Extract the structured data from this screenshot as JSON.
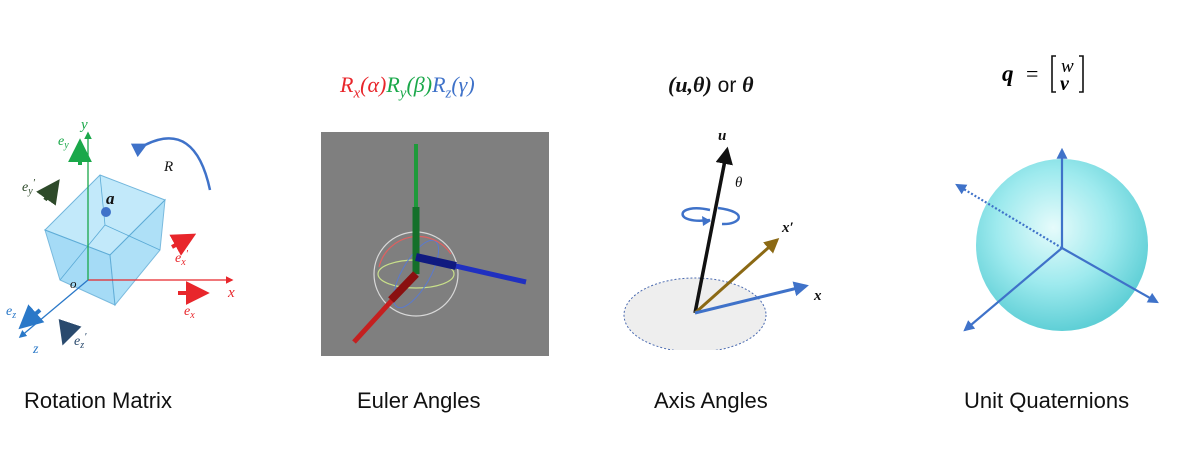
{
  "titles": {
    "rotation_matrix": "Rotation Matrix",
    "euler_angles": "Euler Angles",
    "axis_angles": "Axis Angles",
    "unit_quaternions": "Unit Quaternions"
  },
  "euler_formula": {
    "rx": "R",
    "rx_sub": "x",
    "rx_arg": "(α)",
    "ry": "R",
    "ry_sub": "y",
    "ry_arg": "(β)",
    "rz": "R",
    "rz_sub": "z",
    "rz_arg": "(γ)"
  },
  "axis_formula": {
    "pair": "(u,θ)",
    "or": " or ",
    "theta": "θ"
  },
  "quaternion_formula": {
    "q": "q",
    "eq": "=",
    "w": "w",
    "v": "v"
  },
  "rotation_labels": {
    "y": "y",
    "ey": "e",
    "ey_sub": "y",
    "eyp": "e",
    "eyp_sub": "y",
    "eyp_prime": "′",
    "a": "a",
    "R": "R",
    "o": "o",
    "x": "x",
    "ex": "e",
    "ex_sub": "x",
    "exp": "e",
    "exp_sub": "x",
    "exp_prime": "′",
    "ez": "e",
    "ez_sub": "z",
    "z": "z",
    "ezp": "e",
    "ezp_sub": "z",
    "ezp_prime": "′"
  },
  "axis_labels": {
    "u": "u",
    "theta": "θ",
    "xprime": "x′",
    "x": "x"
  },
  "colors": {
    "red": "#e8262b",
    "green": "#1aa84a",
    "blue": "#3f72c9",
    "dark_green": "#2e4a2a",
    "navy": "#2a4a6e",
    "olive": "#8b6914",
    "gray_panel": "#7f7f7f",
    "cube_fill": "#8fd3f4",
    "sphere": "#8ee6ea"
  }
}
